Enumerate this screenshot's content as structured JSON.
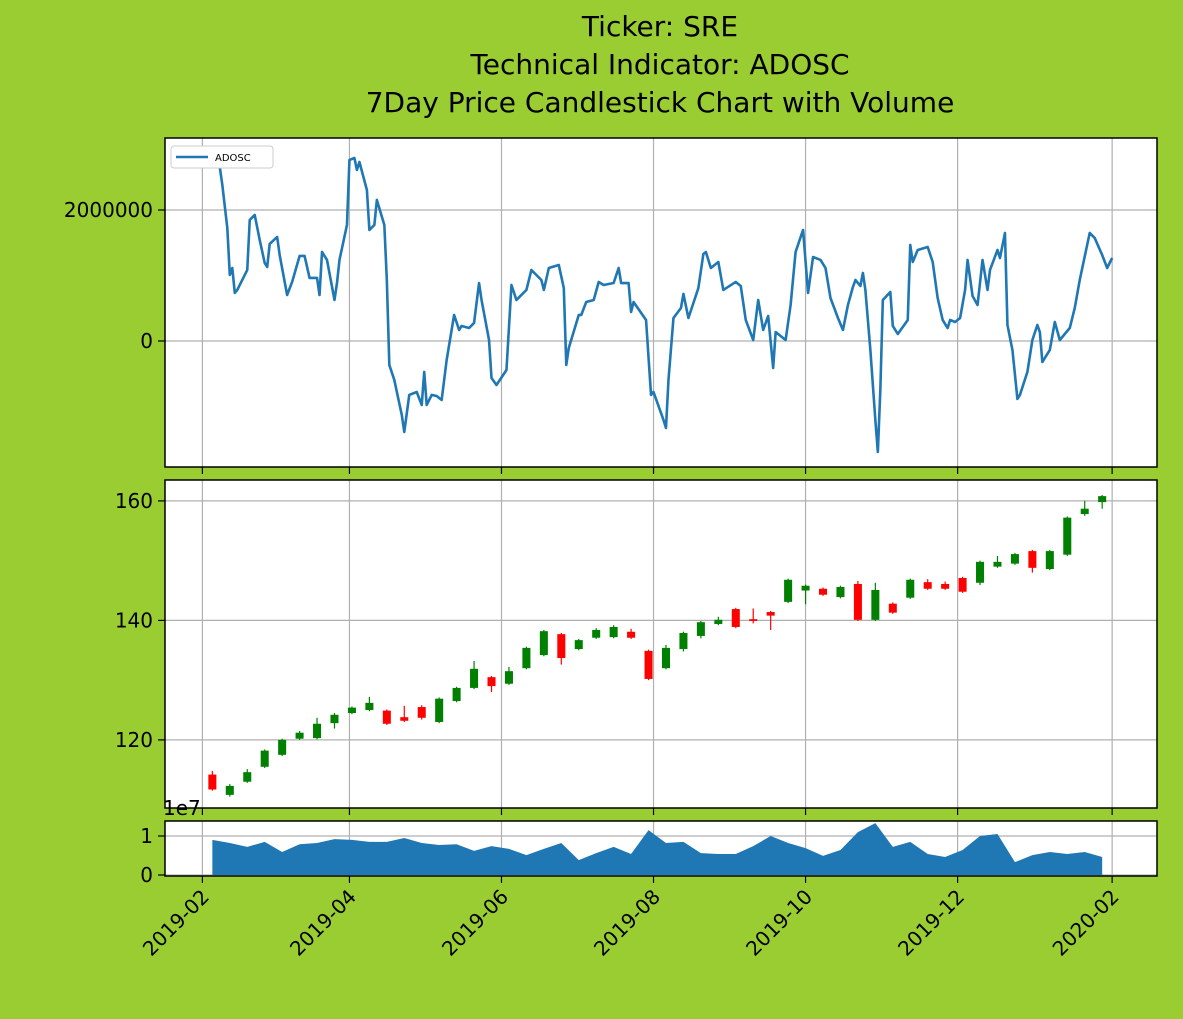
{
  "chart_data": [
    {
      "type": "line",
      "title": [
        "Ticker: SRE",
        "Technical Indicator: ADOSC",
        "7Day Price Candlestick Chart with Volume"
      ],
      "x": [
        "2019-02-07",
        "2019-02-09",
        "2019-02-11",
        "2019-02-12",
        "2019-02-13",
        "2019-02-14",
        "2019-02-15",
        "2019-02-19",
        "2019-02-20",
        "2019-02-22",
        "2019-02-24",
        "2019-02-26",
        "2019-02-27",
        "2019-02-28",
        "2019-03-03",
        "2019-03-04",
        "2019-03-07",
        "2019-03-09",
        "2019-03-12",
        "2019-03-14",
        "2019-03-16",
        "2019-03-19",
        "2019-03-20",
        "2019-03-21",
        "2019-03-23",
        "2019-03-26",
        "2019-03-27",
        "2019-03-28",
        "2019-03-31",
        "2019-04-01",
        "2019-04-03",
        "2019-04-04",
        "2019-04-05",
        "2019-04-08",
        "2019-04-09",
        "2019-04-11",
        "2019-04-12",
        "2019-04-15",
        "2019-04-16",
        "2019-04-17",
        "2019-04-19",
        "2019-04-22",
        "2019-04-23",
        "2019-04-25",
        "2019-04-28",
        "2019-04-30",
        "2019-05-01",
        "2019-05-02",
        "2019-05-04",
        "2019-05-06",
        "2019-05-08",
        "2019-05-10",
        "2019-05-13",
        "2019-05-15",
        "2019-05-16",
        "2019-05-19",
        "2019-05-21",
        "2019-05-23",
        "2019-05-24",
        "2019-05-27",
        "2019-05-28",
        "2019-05-30",
        "2019-06-03",
        "2019-06-05",
        "2019-06-07",
        "2019-06-11",
        "2019-06-13",
        "2019-06-17",
        "2019-06-18",
        "2019-06-20",
        "2019-06-24",
        "2019-06-26",
        "2019-06-27",
        "2019-06-28",
        "2019-07-02",
        "2019-07-03",
        "2019-07-05",
        "2019-07-08",
        "2019-07-10",
        "2019-07-12",
        "2019-07-16",
        "2019-07-18",
        "2019-07-19",
        "2019-07-22",
        "2019-07-23",
        "2019-07-24",
        "2019-07-29",
        "2019-07-31",
        "2019-08-01",
        "2019-08-05",
        "2019-08-06",
        "2019-08-07",
        "2019-08-09",
        "2019-08-12",
        "2019-08-13",
        "2019-08-15",
        "2019-08-19",
        "2019-08-21",
        "2019-08-22",
        "2019-08-24",
        "2019-08-27",
        "2019-08-29",
        "2019-09-03",
        "2019-09-05",
        "2019-09-07",
        "2019-09-10",
        "2019-09-12",
        "2019-09-14",
        "2019-09-16",
        "2019-09-18",
        "2019-09-19",
        "2019-09-23",
        "2019-09-25",
        "2019-09-27",
        "2019-09-30",
        "2019-10-02",
        "2019-10-04",
        "2019-10-07",
        "2019-10-09",
        "2019-10-11",
        "2019-10-14",
        "2019-10-16",
        "2019-10-18",
        "2019-10-20",
        "2019-10-21",
        "2019-10-23",
        "2019-10-24",
        "2019-10-25",
        "2019-10-27",
        "2019-10-29",
        "2019-10-30",
        "2019-10-31",
        "2019-11-01",
        "2019-11-04",
        "2019-11-05",
        "2019-11-07",
        "2019-11-11",
        "2019-11-12",
        "2019-11-13",
        "2019-11-15",
        "2019-11-19",
        "2019-11-21",
        "2019-11-23",
        "2019-11-25",
        "2019-11-27",
        "2019-11-28",
        "2019-11-30",
        "2019-12-02",
        "2019-12-04",
        "2019-12-05",
        "2019-12-07",
        "2019-12-09",
        "2019-12-11",
        "2019-12-13",
        "2019-12-14",
        "2019-12-17",
        "2019-12-18",
        "2019-12-20",
        "2019-12-21",
        "2019-12-23",
        "2019-12-25",
        "2019-12-26",
        "2019-12-29",
        "2019-12-31",
        "2020-01-02",
        "2020-01-03",
        "2020-01-04",
        "2020-01-07",
        "2020-01-09",
        "2020-01-11",
        "2020-01-15",
        "2020-01-17",
        "2020-01-19",
        "2020-01-23",
        "2020-01-25",
        "2020-01-28",
        "2020-01-30",
        "2020-02-01"
      ],
      "series": [
        {
          "name": "ADOSC",
          "color": "#1f77b4",
          "values": [
            2916000,
            2382000,
            1725000,
            1008000,
            1114000,
            733000,
            779000,
            1084000,
            1847000,
            1924000,
            1542000,
            1191000,
            1130000,
            1481000,
            1588000,
            1313000,
            702000,
            901000,
            1298000,
            1298000,
            962000,
            962000,
            702000,
            1359000,
            1237000,
            626000,
            885000,
            1237000,
            1771000,
            2763000,
            2794000,
            2611000,
            2733000,
            2305000,
            1695000,
            1771000,
            2153000,
            1771000,
            931000,
            -366000,
            -595000,
            -1130000,
            -1389000,
            -824000,
            -779000,
            -977000,
            -473000,
            -977000,
            -824000,
            -840000,
            -901000,
            -290000,
            397000,
            168000,
            229000,
            198000,
            275000,
            885000,
            626000,
            15000,
            -565000,
            -672000,
            -443000,
            855000,
            626000,
            779000,
            1084000,
            931000,
            779000,
            1114000,
            1160000,
            809000,
            -366000,
            -107000,
            397000,
            397000,
            595000,
            626000,
            901000,
            855000,
            885000,
            1114000,
            885000,
            885000,
            443000,
            595000,
            321000,
            -824000,
            -779000,
            -1206000,
            -1328000,
            -595000,
            351000,
            504000,
            718000,
            351000,
            809000,
            1328000,
            1359000,
            1114000,
            1206000,
            779000,
            901000,
            840000,
            321000,
            15000,
            626000,
            168000,
            382000,
            -412000,
            137000,
            15000,
            550000,
            1359000,
            1695000,
            733000,
            1282000,
            1237000,
            1114000,
            656000,
            351000,
            168000,
            550000,
            824000,
            931000,
            840000,
            1038000,
            779000,
            -137000,
            -1206000,
            -1695000,
            -748000,
            626000,
            748000,
            229000,
            107000,
            321000,
            1466000,
            1206000,
            1389000,
            1435000,
            1206000,
            656000,
            321000,
            198000,
            321000,
            290000,
            351000,
            779000,
            1237000,
            687000,
            550000,
            1237000,
            779000,
            1084000,
            1389000,
            1267000,
            1649000,
            244000,
            -137000,
            -885000,
            -824000,
            -473000,
            15000,
            244000,
            137000,
            -321000,
            -137000,
            290000,
            15000,
            198000,
            504000,
            931000,
            1649000,
            1573000,
            1313000,
            1114000,
            1267000
          ]
        }
      ],
      "xlim": [
        "2019-01-17",
        "2020-02-19"
      ],
      "xticks": [
        "2019-02",
        "2019-04",
        "2019-06",
        "2019-08",
        "2019-10",
        "2019-12",
        "2020-02"
      ],
      "ylim": [
        -1924000,
        3099000
      ],
      "yticks": [
        0,
        2000000
      ],
      "grid": true,
      "legend": "upper left"
    },
    {
      "type": "candlestick",
      "x": [
        "2019-02-05",
        "2019-02-12",
        "2019-02-19",
        "2019-02-26",
        "2019-03-05",
        "2019-03-12",
        "2019-03-19",
        "2019-03-26",
        "2019-04-02",
        "2019-04-09",
        "2019-04-16",
        "2019-04-23",
        "2019-04-30",
        "2019-05-07",
        "2019-05-14",
        "2019-05-21",
        "2019-05-28",
        "2019-06-04",
        "2019-06-11",
        "2019-06-18",
        "2019-06-25",
        "2019-07-02",
        "2019-07-09",
        "2019-07-16",
        "2019-07-23",
        "2019-07-30",
        "2019-08-06",
        "2019-08-13",
        "2019-08-20",
        "2019-08-27",
        "2019-09-03",
        "2019-09-10",
        "2019-09-17",
        "2019-09-24",
        "2019-10-01",
        "2019-10-08",
        "2019-10-15",
        "2019-10-22",
        "2019-10-29",
        "2019-11-05",
        "2019-11-12",
        "2019-11-19",
        "2019-11-26",
        "2019-12-03",
        "2019-12-10",
        "2019-12-17",
        "2019-12-24",
        "2019-12-31",
        "2020-01-07",
        "2020-01-14",
        "2020-01-21",
        "2020-01-28"
      ],
      "open": [
        114.2,
        110.8,
        113.0,
        115.5,
        117.5,
        120.2,
        120.3,
        122.8,
        124.5,
        125.0,
        124.9,
        123.8,
        125.5,
        123.0,
        126.5,
        128.7,
        130.5,
        129.4,
        132.0,
        134.2,
        137.7,
        135.2,
        137.1,
        137.2,
        138.1,
        134.9,
        132.0,
        135.2,
        137.4,
        139.4,
        141.9,
        140.2,
        141.4,
        143.1,
        145.0,
        145.3,
        143.9,
        146.1,
        140.1,
        142.8,
        143.8,
        146.4,
        146.1,
        147.1,
        146.3,
        149.0,
        149.5,
        151.6,
        148.6,
        151.0,
        157.8,
        159.8
      ],
      "high": [
        114.8,
        112.6,
        115.1,
        118.4,
        120.2,
        121.5,
        123.7,
        124.5,
        125.6,
        127.2,
        125.1,
        125.7,
        125.8,
        127.1,
        128.9,
        133.2,
        130.7,
        132.2,
        135.6,
        138.4,
        137.9,
        136.9,
        138.7,
        139.2,
        138.6,
        135.1,
        135.9,
        138.1,
        139.9,
        140.6,
        142.1,
        142.0,
        141.6,
        147.0,
        146.0,
        145.5,
        145.8,
        146.6,
        146.3,
        143.0,
        147.0,
        146.9,
        146.5,
        147.3,
        150.0,
        150.8,
        151.3,
        151.8,
        151.8,
        157.4,
        160.0,
        161.0
      ],
      "low": [
        111.5,
        110.5,
        112.8,
        115.3,
        117.3,
        120.0,
        120.1,
        121.9,
        124.3,
        124.8,
        122.5,
        123.0,
        123.4,
        122.8,
        126.3,
        128.5,
        128.0,
        129.2,
        131.8,
        134.0,
        132.6,
        135.0,
        136.9,
        137.0,
        136.9,
        130.0,
        131.8,
        134.8,
        137.0,
        139.2,
        138.7,
        139.5,
        138.4,
        142.9,
        142.7,
        144.1,
        143.7,
        139.9,
        139.9,
        141.1,
        143.6,
        145.1,
        145.1,
        144.6,
        145.9,
        148.8,
        149.3,
        148.0,
        148.4,
        150.8,
        157.5,
        158.7
      ],
      "close": [
        111.7,
        112.3,
        114.6,
        118.2,
        120.0,
        121.2,
        122.7,
        124.2,
        125.4,
        126.2,
        122.7,
        123.2,
        123.7,
        126.9,
        128.7,
        131.9,
        129.0,
        131.5,
        135.4,
        138.2,
        133.7,
        136.7,
        138.4,
        138.9,
        137.1,
        130.2,
        135.4,
        137.9,
        139.7,
        140.1,
        138.9,
        139.9,
        140.8,
        146.8,
        145.8,
        144.3,
        145.6,
        140.1,
        145.1,
        141.3,
        146.8,
        145.3,
        145.3,
        144.8,
        149.8,
        149.8,
        151.1,
        148.8,
        151.6,
        157.2,
        158.7,
        160.8
      ],
      "up_color": "#008000",
      "down_color": "#ff0000",
      "xlim": [
        "2019-01-17",
        "2020-02-19"
      ],
      "xticks": [
        "2019-02",
        "2019-04",
        "2019-06",
        "2019-08",
        "2019-10",
        "2019-12",
        "2020-02"
      ],
      "ylim": [
        108.6,
        163.5
      ],
      "yticks": [
        120,
        140,
        160
      ],
      "grid": true
    },
    {
      "type": "area",
      "x": [
        "2019-02-05",
        "2019-02-12",
        "2019-02-19",
        "2019-02-26",
        "2019-03-05",
        "2019-03-12",
        "2019-03-19",
        "2019-03-26",
        "2019-04-02",
        "2019-04-09",
        "2019-04-16",
        "2019-04-23",
        "2019-04-30",
        "2019-05-07",
        "2019-05-14",
        "2019-05-21",
        "2019-05-28",
        "2019-06-04",
        "2019-06-11",
        "2019-06-18",
        "2019-06-25",
        "2019-07-02",
        "2019-07-09",
        "2019-07-16",
        "2019-07-23",
        "2019-07-30",
        "2019-08-06",
        "2019-08-13",
        "2019-08-20",
        "2019-08-27",
        "2019-09-03",
        "2019-09-10",
        "2019-09-17",
        "2019-09-24",
        "2019-10-01",
        "2019-10-08",
        "2019-10-15",
        "2019-10-22",
        "2019-10-29",
        "2019-11-05",
        "2019-11-12",
        "2019-11-19",
        "2019-11-26",
        "2019-12-03",
        "2019-12-10",
        "2019-12-17",
        "2019-12-24",
        "2019-12-31",
        "2020-01-07",
        "2020-01-14",
        "2020-01-21",
        "2020-01-28"
      ],
      "values": [
        9000000,
        8200000,
        7200000,
        8500000,
        5900000,
        7900000,
        8200000,
        9200000,
        9000000,
        8500000,
        8500000,
        9500000,
        8200000,
        7700000,
        7900000,
        6200000,
        7400000,
        6700000,
        5100000,
        6700000,
        8200000,
        3800000,
        5600000,
        7200000,
        5400000,
        11500000,
        8200000,
        8500000,
        5600000,
        5400000,
        5400000,
        7400000,
        10000000,
        8200000,
        6900000,
        4900000,
        6400000,
        11000000,
        13300000,
        7200000,
        8500000,
        5400000,
        4600000,
        6400000,
        10000000,
        10500000,
        3300000,
        5100000,
        5900000,
        5400000,
        5900000,
        4600000
      ],
      "color": "#1f77b4",
      "xlim": [
        "2019-01-17",
        "2020-02-19"
      ],
      "xticks": [
        "2019-02",
        "2019-04",
        "2019-06",
        "2019-08",
        "2019-10",
        "2019-12",
        "2020-02"
      ],
      "ylim": [
        -260000,
        13850000
      ],
      "yticks": [
        0,
        {
          "value": 10000000,
          "label": "1"
        }
      ],
      "y_offset_label": "1e7",
      "grid": true
    }
  ]
}
